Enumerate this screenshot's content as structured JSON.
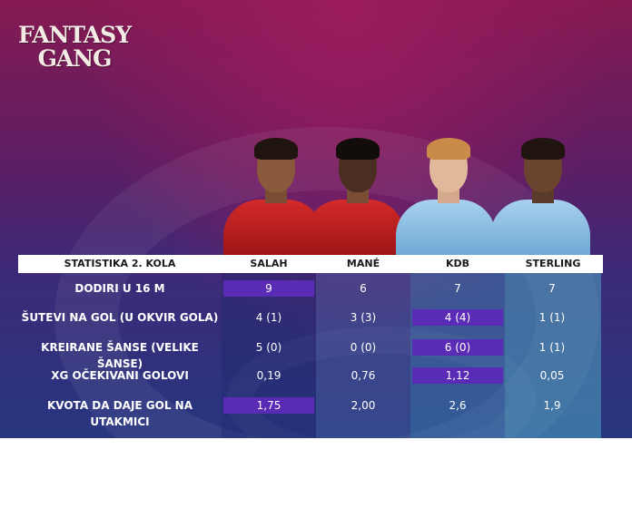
{
  "logo": {
    "line1": "FANTASY",
    "line2": "GANG"
  },
  "players": [
    {
      "name": "SALAH",
      "kit": "red"
    },
    {
      "name": "MANÉ",
      "kit": "red"
    },
    {
      "name": "KDB",
      "kit": "blue"
    },
    {
      "name": "STERLING",
      "kit": "blue"
    }
  ],
  "table": {
    "header_label": "STATISTIKA 2. KOLA",
    "columns": [
      "SALAH",
      "MANÉ",
      "KDB",
      "STERLING"
    ],
    "rows": [
      {
        "label": "DODIRI U 16 M",
        "values": [
          "9",
          "6",
          "7",
          "7"
        ],
        "highlight": 0
      },
      {
        "label": "ŠUTEVI NA GOL (U OKVIR GOLA)",
        "values": [
          "4 (1)",
          "3 (3)",
          "4 (4)",
          "1 (1)"
        ],
        "highlight": 2
      },
      {
        "label": "KREIRANE ŠANSE (VELIKE ŠANSE)",
        "values": [
          "5 (0)",
          "0 (0)",
          "6 (0)",
          "1 (1)"
        ],
        "highlight": 2
      },
      {
        "label": "XG OČEKIVANI GOLOVI",
        "values": [
          "0,19",
          "0,76",
          "1,12",
          "0,05"
        ],
        "highlight": 2
      },
      {
        "label": "KVOTA DA DAJE GOL NA UTAKMICI",
        "values": [
          "1,75",
          "2,00",
          "2,6",
          "1,9"
        ],
        "highlight": 0
      }
    ]
  },
  "colors": {
    "highlight": "#5a2bb5",
    "liverpool": "#c8102e",
    "city": "#6cabdd"
  }
}
